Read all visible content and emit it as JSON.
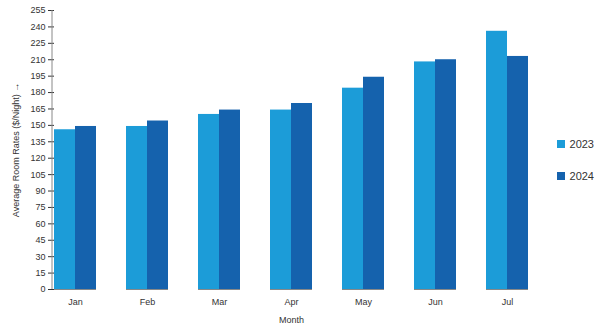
{
  "chart_data": {
    "type": "bar",
    "x_label": "Month",
    "y_label": "Average Room Rates ($/Night)",
    "categories": [
      "Jan",
      "Feb",
      "Mar",
      "Apr",
      "May",
      "Jun",
      "Jul"
    ],
    "series": [
      {
        "name": "2023",
        "color": "#1c9cd8",
        "values": [
          146,
          149,
          160,
          164,
          184,
          208,
          236
        ]
      },
      {
        "name": "2024",
        "color": "#1562ad",
        "values": [
          149,
          154,
          164,
          170,
          194,
          210,
          213
        ]
      }
    ],
    "ylim": [
      0,
      255
    ],
    "yticks": [
      0,
      15,
      30,
      45,
      60,
      75,
      90,
      105,
      120,
      135,
      150,
      165,
      180,
      195,
      210,
      225,
      240,
      255
    ],
    "grid": false,
    "legend": "right"
  }
}
